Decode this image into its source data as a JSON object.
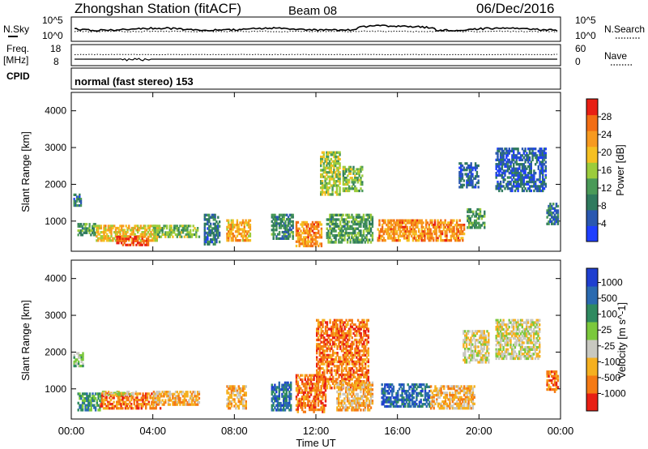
{
  "header": {
    "station": "Zhongshan Station (fitACF)",
    "beam": "Beam 08",
    "date": "06/Dec/2016"
  },
  "side_labels": {
    "nsky": "N.Sky",
    "nsearch": "N.Search",
    "freq_top": "Freq.",
    "freq_unit": "[MHz]",
    "cpid": "CPID",
    "nave": "Nave",
    "nsky_ticks": [
      "10^5",
      "10^0"
    ],
    "nsearch_ticks": [
      "10^5",
      "10^0"
    ],
    "freq_ticks": [
      "18",
      "8"
    ],
    "nave_ticks": [
      "60",
      "0"
    ]
  },
  "cpid_text": "normal (fast stereo) 153",
  "xaxis": {
    "label": "Time UT",
    "ticks": [
      "00:00",
      "04:00",
      "08:00",
      "12:00",
      "16:00",
      "20:00",
      "00:00"
    ]
  },
  "chart_data": [
    {
      "type": "heatmap",
      "title": "",
      "xlabel": "Time UT",
      "ylabel": "Slant Range [km]",
      "xlim": [
        0,
        24
      ],
      "ylim": [
        180,
        4500
      ],
      "yticks": [
        1000,
        2000,
        3000,
        4000
      ],
      "colorbar": {
        "label": "Power [dB]",
        "ticks": [
          4,
          8,
          12,
          16,
          20,
          24,
          28
        ],
        "range": [
          0,
          32
        ],
        "colors": [
          "#1f3fff",
          "#2a58b0",
          "#2f7a5e",
          "#4a9a58",
          "#9ccc3c",
          "#f5c022",
          "#f79a20",
          "#f26d14",
          "#e81f14"
        ]
      },
      "regions": [
        {
          "t0": 0.1,
          "t1": 0.5,
          "r0": 1400,
          "r1": 1750,
          "level": 8
        },
        {
          "t0": 0.3,
          "t1": 1.2,
          "r0": 600,
          "r1": 950,
          "level": 12
        },
        {
          "t0": 1.2,
          "t1": 4.3,
          "r0": 450,
          "r1": 900,
          "level": 20
        },
        {
          "t0": 2.2,
          "t1": 3.8,
          "r0": 330,
          "r1": 600,
          "level": 28
        },
        {
          "t0": 4.0,
          "t1": 6.3,
          "r0": 550,
          "r1": 900,
          "level": 14
        },
        {
          "t0": 6.5,
          "t1": 7.3,
          "r0": 350,
          "r1": 1200,
          "level": 8
        },
        {
          "t0": 7.6,
          "t1": 8.8,
          "r0": 450,
          "r1": 1050,
          "level": 22
        },
        {
          "t0": 9.8,
          "t1": 10.9,
          "r0": 500,
          "r1": 1200,
          "level": 10
        },
        {
          "t0": 11.0,
          "t1": 12.3,
          "r0": 300,
          "r1": 1000,
          "level": 24
        },
        {
          "t0": 12.2,
          "t1": 13.2,
          "r0": 1700,
          "r1": 2900,
          "level": 16
        },
        {
          "t0": 13.3,
          "t1": 14.3,
          "r0": 1800,
          "r1": 2500,
          "level": 14
        },
        {
          "t0": 12.5,
          "t1": 14.8,
          "r0": 400,
          "r1": 1200,
          "level": 12
        },
        {
          "t0": 15.0,
          "t1": 19.3,
          "r0": 450,
          "r1": 1050,
          "level": 24
        },
        {
          "t0": 19.4,
          "t1": 20.3,
          "r0": 800,
          "r1": 1350,
          "level": 12
        },
        {
          "t0": 19.0,
          "t1": 20.0,
          "r0": 1900,
          "r1": 2600,
          "level": 6
        },
        {
          "t0": 20.8,
          "t1": 23.3,
          "r0": 1800,
          "r1": 3000,
          "level": 6
        },
        {
          "t0": 23.3,
          "t1": 23.9,
          "r0": 900,
          "r1": 1500,
          "level": 8
        }
      ]
    },
    {
      "type": "heatmap",
      "title": "",
      "xlabel": "Time UT",
      "ylabel": "Slant Range [km]",
      "xlim": [
        0,
        24
      ],
      "ylim": [
        180,
        4500
      ],
      "yticks": [
        1000,
        2000,
        3000,
        4000
      ],
      "colorbar": {
        "label": "Velocity [m s^-1]",
        "ticks": [
          "1000",
          "500",
          "100",
          "25",
          "-25",
          "-100",
          "-500",
          "-1000"
        ],
        "colors": [
          "#1f3fd0",
          "#2a6ab0",
          "#2f8a60",
          "#7bc83c",
          "#c8c8c0",
          "#f5b020",
          "#f57a14",
          "#e81f14"
        ]
      },
      "regions": [
        {
          "t0": 0.1,
          "t1": 0.6,
          "r0": 1600,
          "r1": 2000,
          "level": "25"
        },
        {
          "t0": 0.3,
          "t1": 1.5,
          "r0": 400,
          "r1": 900,
          "level": "100"
        },
        {
          "t0": 1.4,
          "t1": 4.4,
          "r0": 450,
          "r1": 900,
          "level": "-500"
        },
        {
          "t0": 1.5,
          "t1": 3.2,
          "r0": 820,
          "r1": 950,
          "level": "-25"
        },
        {
          "t0": 4.0,
          "t1": 6.3,
          "r0": 550,
          "r1": 950,
          "level": "-100"
        },
        {
          "t0": 7.6,
          "t1": 8.6,
          "r0": 450,
          "r1": 1100,
          "level": "-100"
        },
        {
          "t0": 9.8,
          "t1": 10.8,
          "r0": 400,
          "r1": 1200,
          "level": "500"
        },
        {
          "t0": 11.0,
          "t1": 12.5,
          "r0": 350,
          "r1": 1400,
          "level": "-500"
        },
        {
          "t0": 12.0,
          "t1": 14.6,
          "r0": 1000,
          "r1": 2900,
          "level": "-500"
        },
        {
          "t0": 13.0,
          "t1": 14.8,
          "r0": 400,
          "r1": 1200,
          "level": "-100"
        },
        {
          "t0": 15.2,
          "t1": 17.6,
          "r0": 500,
          "r1": 1150,
          "level": "500"
        },
        {
          "t0": 17.6,
          "t1": 19.8,
          "r0": 450,
          "r1": 1100,
          "level": "-100"
        },
        {
          "t0": 19.2,
          "t1": 20.5,
          "r0": 1700,
          "r1": 2600,
          "level": "-25"
        },
        {
          "t0": 20.8,
          "t1": 23.0,
          "r0": 1800,
          "r1": 2900,
          "level": "-25"
        },
        {
          "t0": 23.3,
          "t1": 23.9,
          "r0": 900,
          "r1": 1500,
          "level": "-500"
        }
      ]
    }
  ]
}
